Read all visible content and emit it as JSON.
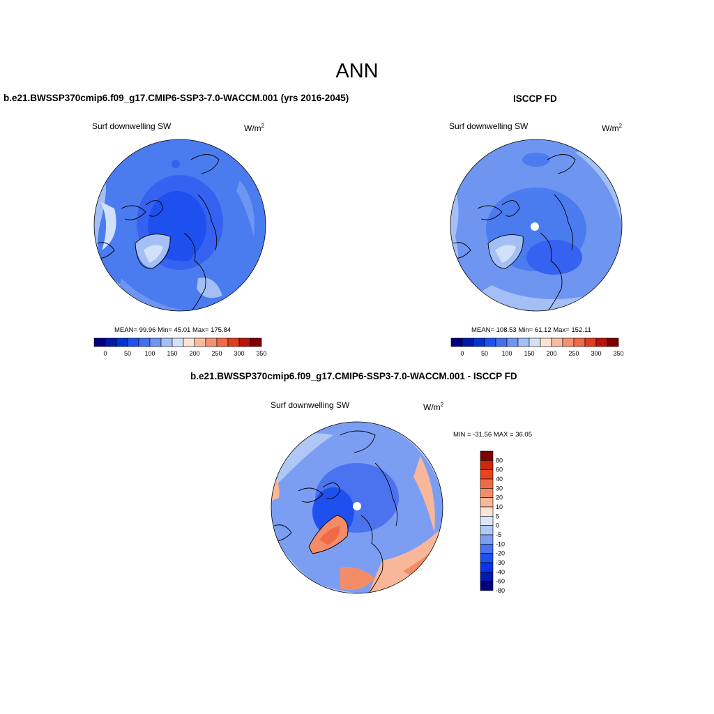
{
  "title": "ANN",
  "panels": [
    {
      "id": "model",
      "title": "b.e21.BWSSP370cmip6.f09_g17.CMIP6-SSP3-7.0-WACCM.001 (yrs 2016-2045)",
      "variable": "Surf downwelling SW",
      "units_base": "W/m",
      "units_exp": "2",
      "stats": "MEAN=  99.96  Min=  45.01  Max= 175.84"
    },
    {
      "id": "obs",
      "title": "ISCCP FD",
      "variable": "Surf downwelling SW",
      "units_base": "W/m",
      "units_exp": "2",
      "stats": "MEAN= 108.53  Min=  61.12  Max= 152.11"
    },
    {
      "id": "diff",
      "title": "b.e21.BWSSP370cmip6.f09_g17.CMIP6-SSP3-7.0-WACCM.001 - ISCCP FD",
      "variable": "Surf downwelling SW",
      "units_base": "W/m",
      "units_exp": "2",
      "stats": "MIN = -31.56 MAX =  36.05"
    }
  ],
  "colorbar_abs": {
    "colors": [
      "#00007f",
      "#0019a8",
      "#0032d4",
      "#1e50f0",
      "#4170f0",
      "#6e95f0",
      "#a3bff5",
      "#d2e1fa",
      "#fde3d5",
      "#f9bba0",
      "#f59170",
      "#f06a48",
      "#e03c1e",
      "#b8140a",
      "#7f0000"
    ],
    "ticks": [
      "0",
      "50",
      "100",
      "150",
      "200",
      "250",
      "300",
      "350"
    ]
  },
  "colorbar_diff": {
    "colors": [
      "#00007f",
      "#0019b0",
      "#0a32e6",
      "#1e50f0",
      "#4b73f0",
      "#7c9ef2",
      "#b0c8f5",
      "#dbe6fa",
      "#fde3d5",
      "#f9b79a",
      "#f58c68",
      "#f06a48",
      "#e8441e",
      "#c82a0a",
      "#7f0000"
    ],
    "ticks": [
      "80",
      "60",
      "40",
      "30",
      "20",
      "10",
      "5",
      "0",
      "-5",
      "-10",
      "-20",
      "-30",
      "-40",
      "-60",
      "-80"
    ]
  }
}
